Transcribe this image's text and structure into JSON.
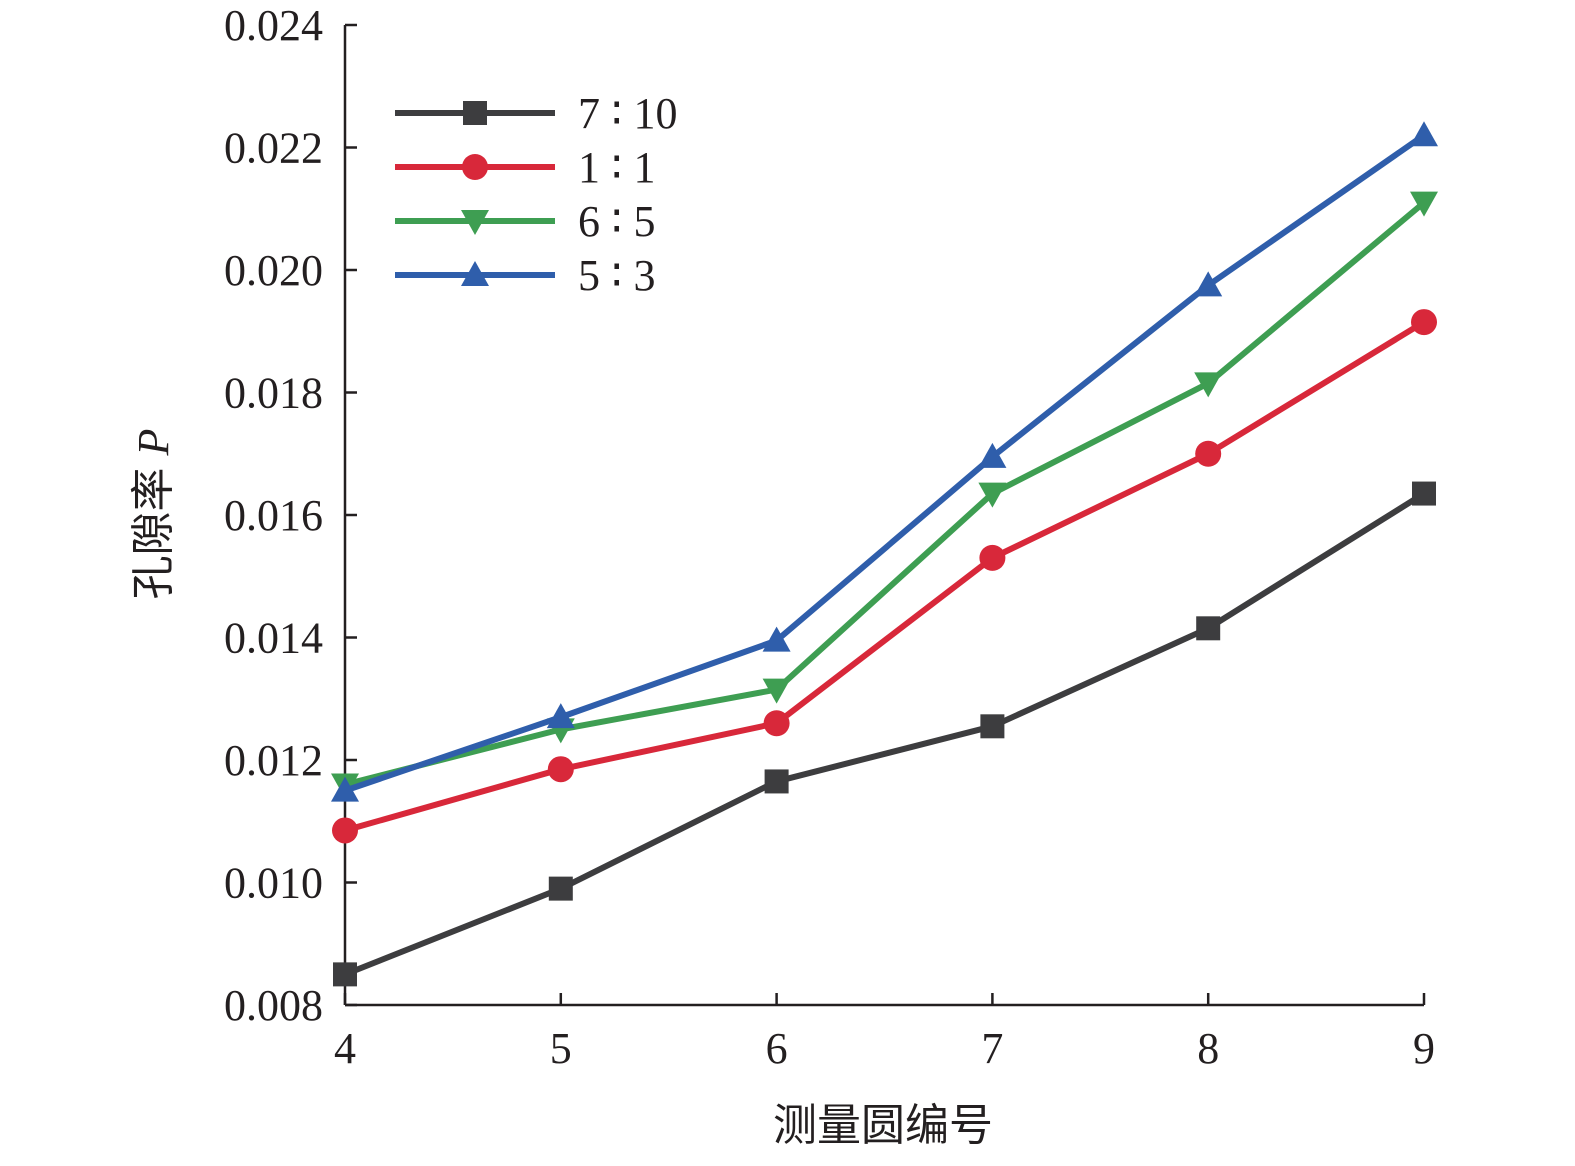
{
  "chart_data": {
    "type": "line",
    "title": "",
    "xlabel": "测量圆编号",
    "ylabel": "孔隙率",
    "ylabel_symbol": "P",
    "x": [
      4,
      5,
      6,
      7,
      8,
      9
    ],
    "xlim": [
      4,
      9
    ],
    "ylim": [
      0.008,
      0.024
    ],
    "x_ticks": [
      "4",
      "5",
      "6",
      "7",
      "8",
      "9"
    ],
    "y_ticks": [
      "0.008",
      "0.010",
      "0.012",
      "0.014",
      "0.016",
      "0.018",
      "0.020",
      "0.022",
      "0.024"
    ],
    "grid": false,
    "legend_position": "top-left",
    "series": [
      {
        "name": "7 ∶ 10",
        "color": "#3d3d3f",
        "marker": "square",
        "values": [
          0.0085,
          0.0099,
          0.01165,
          0.01255,
          0.01415,
          0.01635
        ]
      },
      {
        "name": "1 ∶ 1",
        "color": "#d8283a",
        "marker": "circle",
        "values": [
          0.01085,
          0.01185,
          0.0126,
          0.0153,
          0.017,
          0.01915
        ]
      },
      {
        "name": "6 ∶ 5",
        "color": "#3e9e52",
        "marker": "triangle-down",
        "values": [
          0.0116,
          0.0125,
          0.01315,
          0.01635,
          0.01815,
          0.0211
        ]
      },
      {
        "name": "5 ∶ 3",
        "color": "#2f5eab",
        "marker": "triangle-up",
        "values": [
          0.0115,
          0.0127,
          0.01395,
          0.01695,
          0.01975,
          0.0222
        ]
      }
    ]
  }
}
